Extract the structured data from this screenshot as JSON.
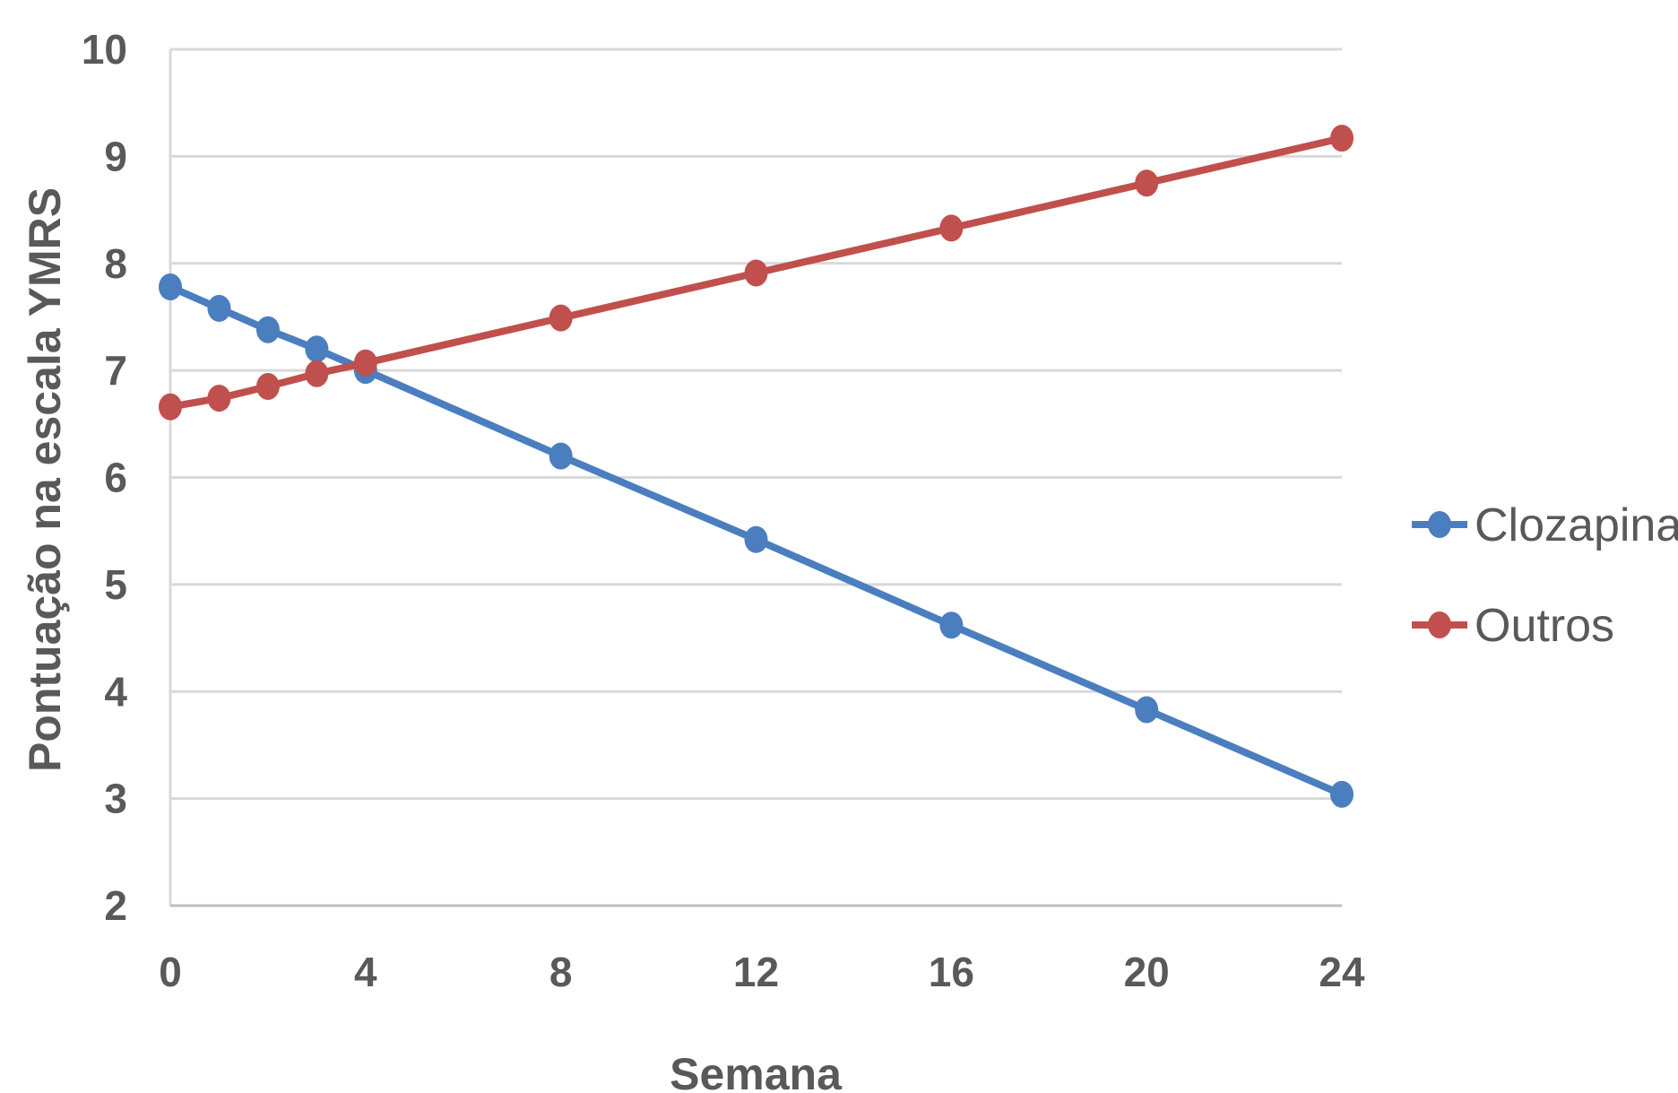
{
  "chart_data": {
    "type": "line",
    "xlabel": "Semana",
    "ylabel": "Pontuação na escala YMRS",
    "x_ticks": [
      0,
      4,
      8,
      12,
      16,
      20,
      24
    ],
    "y_ticks": [
      2,
      3,
      4,
      5,
      6,
      7,
      8,
      9,
      10
    ],
    "xlim": [
      0,
      24
    ],
    "ylim": [
      2,
      10
    ],
    "grid": "horizontal",
    "legend_position": "right",
    "series": [
      {
        "name": "Clozapina",
        "color": "#4a7ebf",
        "x": [
          0,
          1,
          2,
          3,
          4,
          8,
          12,
          16,
          20,
          24
        ],
        "y": [
          7.78,
          7.58,
          7.38,
          7.2,
          7.0,
          6.2,
          5.42,
          4.62,
          3.83,
          3.04
        ]
      },
      {
        "name": "Outros",
        "color": "#c0504d",
        "x": [
          0,
          1,
          2,
          3,
          4,
          8,
          12,
          16,
          20,
          24
        ],
        "y": [
          6.66,
          6.74,
          6.85,
          6.97,
          7.07,
          7.49,
          7.91,
          8.33,
          8.75,
          9.17
        ]
      }
    ]
  }
}
